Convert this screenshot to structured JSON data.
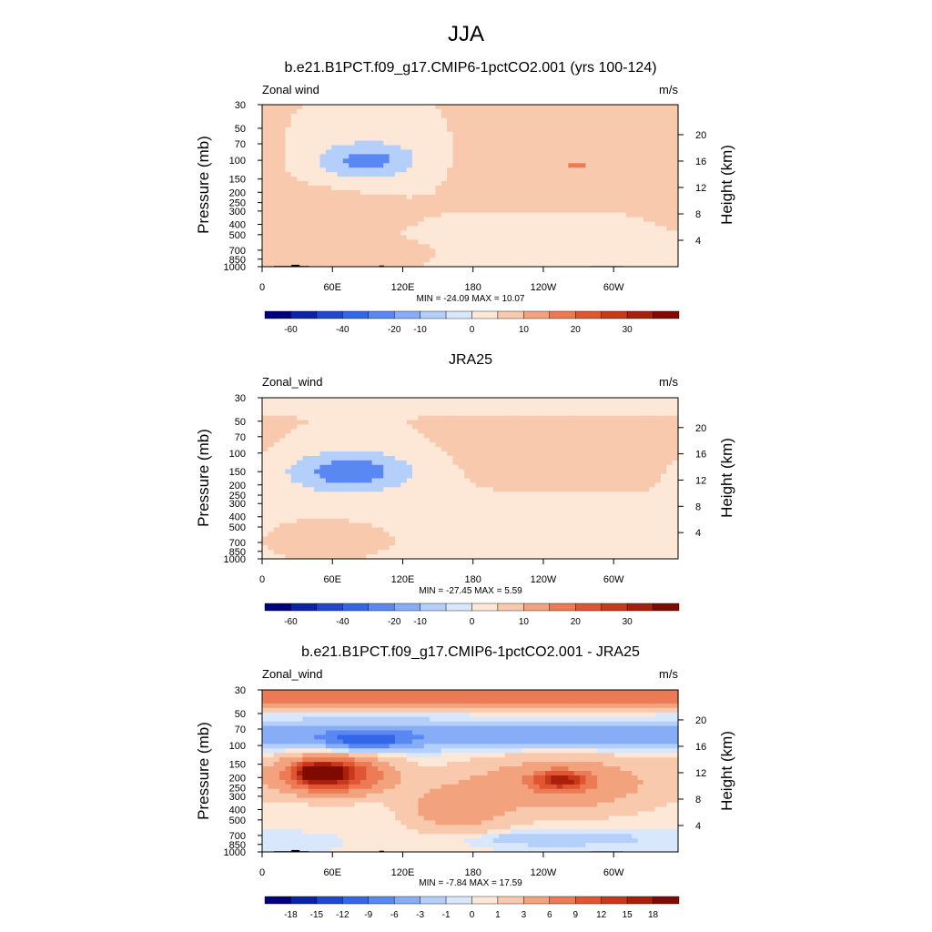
{
  "figure": {
    "title": "JJA"
  },
  "panels": [
    {
      "title": "b.e21.B1PCT.f09_g17.CMIP6-1pctCO2.001 (yrs 100-124)",
      "left_label": "Zonal wind",
      "right_label": "m/s",
      "ylabel": "Pressure (mb)",
      "ylabel_right": "Height (km)",
      "stats": "MIN = -24.09  MAX =  10.07",
      "has_topography": true,
      "colorbar_labels": [
        "-60",
        "-40",
        "-20",
        "-10",
        "0",
        "10",
        "20",
        "30"
      ]
    },
    {
      "title": "JRA25",
      "left_label": "Zonal_wind",
      "right_label": "m/s",
      "ylabel": "Pressure (mb)",
      "ylabel_right": "Height (km)",
      "stats": "MIN = -27.45  MAX =   5.59",
      "has_topography": false,
      "colorbar_labels": [
        "-60",
        "-40",
        "-20",
        "-10",
        "0",
        "10",
        "20",
        "30"
      ]
    },
    {
      "title": "b.e21.B1PCT.f09_g17.CMIP6-1pctCO2.001 - JRA25",
      "left_label": "Zonal_wind",
      "right_label": "m/s",
      "ylabel": "Pressure (mb)",
      "ylabel_right": "Height (km)",
      "stats": "MIN = -7.84  MAX =  17.59",
      "has_topography": true,
      "colorbar_labels": [
        "-18",
        "-15",
        "-12",
        "-9",
        "-6",
        "-3",
        "-1",
        "0",
        "1",
        "3",
        "6",
        "9",
        "12",
        "15",
        "18"
      ]
    }
  ],
  "chart_data": [
    {
      "type": "heatmap",
      "title": "b.e21.B1PCT.f09_g17.CMIP6-1pctCO2.001 (yrs 100-124)",
      "xlabel": "",
      "ylabel": "Pressure (mb)",
      "ylabel_right": "Height (km)",
      "x_ticks": [
        "0",
        "60E",
        "120E",
        "180",
        "120W",
        "60W"
      ],
      "x_tick_values": [
        0,
        60,
        120,
        180,
        240,
        300
      ],
      "xlim": [
        0,
        355
      ],
      "y_ticks": [
        30,
        50,
        70,
        100,
        150,
        200,
        250,
        300,
        400,
        500,
        700,
        850,
        1000
      ],
      "ylim": [
        1000,
        30
      ],
      "y_scale": "log",
      "y_right_ticks": [
        4,
        8,
        12,
        16,
        20
      ],
      "levels": [
        -60,
        -40,
        -20,
        -10,
        0,
        10,
        20,
        30
      ],
      "colors": [
        "#00007f",
        "#0a23a8",
        "#1f47cf",
        "#3466e8",
        "#5a88f2",
        "#88adf7",
        "#b5cffb",
        "#d9e7fc",
        "#fde8d8",
        "#f8c9ad",
        "#f3a27e",
        "#ec7a55",
        "#e05532",
        "#c8381b",
        "#a8200c",
        "#7f0a02"
      ],
      "features": [
        {
          "kind": "ellipse",
          "lon": 90,
          "p": 100,
          "dlon": 45,
          "dp": 0.42,
          "value": -24.09
        },
        {
          "kind": "ellipse",
          "lon": 50,
          "p": 250,
          "dlon": 50,
          "dp": 0.45,
          "value": 3
        },
        {
          "kind": "ellipse",
          "lon": 75,
          "p": 700,
          "dlon": 40,
          "dp": 0.18,
          "value": 5
        },
        {
          "kind": "ellipse",
          "lon": 270,
          "p": 110,
          "dlon": 85,
          "dp": 0.5,
          "value": 10.07
        },
        {
          "kind": "ellipse",
          "lon": 240,
          "p": 550,
          "dlon": 65,
          "dp": 0.35,
          "value": -3
        }
      ],
      "stats": {
        "min": -24.09,
        "max": 10.07
      },
      "colorbar_labels": [
        "-60",
        "-40",
        "-20",
        "-10",
        "0",
        "10",
        "20",
        "30"
      ]
    },
    {
      "type": "heatmap",
      "title": "JRA25",
      "xlabel": "",
      "ylabel": "Pressure (mb)",
      "ylabel_right": "Height (km)",
      "x_ticks": [
        "0",
        "60E",
        "120E",
        "180",
        "120W",
        "60W"
      ],
      "x_tick_values": [
        0,
        60,
        120,
        180,
        240,
        300
      ],
      "xlim": [
        0,
        355
      ],
      "y_ticks": [
        30,
        50,
        70,
        100,
        150,
        200,
        250,
        300,
        400,
        500,
        700,
        850,
        1000
      ],
      "ylim": [
        1000,
        30
      ],
      "y_scale": "log",
      "y_right_ticks": [
        4,
        8,
        12,
        16,
        20
      ],
      "levels": [
        -60,
        -40,
        -20,
        -10,
        0,
        10,
        20,
        30
      ],
      "colors": [
        "#00007f",
        "#0a23a8",
        "#1f47cf",
        "#3466e8",
        "#5a88f2",
        "#88adf7",
        "#b5cffb",
        "#d9e7fc",
        "#fde8d8",
        "#f8c9ad",
        "#f3a27e",
        "#ec7a55",
        "#e05532",
        "#c8381b",
        "#a8200c",
        "#7f0a02"
      ],
      "features": [
        {
          "kind": "band",
          "p": 30,
          "dp": 0.2,
          "value": -3
        },
        {
          "kind": "ellipse",
          "lon": 75,
          "p": 150,
          "dlon": 55,
          "dp": 0.45,
          "value": -27.45
        },
        {
          "kind": "ellipse",
          "lon": 265,
          "p": 110,
          "dlon": 90,
          "dp": 0.5,
          "value": 5.59
        },
        {
          "kind": "ellipse",
          "lon": 230,
          "p": 450,
          "dlon": 100,
          "dp": 0.5,
          "value": -3
        },
        {
          "kind": "ellipse",
          "lon": 60,
          "p": 600,
          "dlon": 45,
          "dp": 0.25,
          "value": 2
        }
      ],
      "stats": {
        "min": -27.45,
        "max": 5.59
      },
      "colorbar_labels": [
        "-60",
        "-40",
        "-20",
        "-10",
        "0",
        "10",
        "20",
        "30"
      ]
    },
    {
      "type": "heatmap",
      "title": "b.e21.B1PCT.f09_g17.CMIP6-1pctCO2.001 - JRA25",
      "xlabel": "",
      "ylabel": "Pressure (mb)",
      "ylabel_right": "Height (km)",
      "x_ticks": [
        "0",
        "60E",
        "120E",
        "180",
        "120W",
        "60W"
      ],
      "x_tick_values": [
        0,
        60,
        120,
        180,
        240,
        300
      ],
      "xlim": [
        0,
        355
      ],
      "y_ticks": [
        30,
        50,
        70,
        100,
        150,
        200,
        250,
        300,
        400,
        500,
        700,
        850,
        1000
      ],
      "ylim": [
        1000,
        30
      ],
      "y_scale": "log",
      "y_right_ticks": [
        4,
        8,
        12,
        16,
        20
      ],
      "levels": [
        -18,
        -15,
        -12,
        -9,
        -6,
        -3,
        -1,
        0,
        1,
        3,
        6,
        9,
        12,
        15,
        18
      ],
      "colors": [
        "#00007f",
        "#0a23a8",
        "#1f47cf",
        "#3466e8",
        "#5a88f2",
        "#88adf7",
        "#b5cffb",
        "#d9e7fc",
        "#fde8d8",
        "#f8c9ad",
        "#f3a27e",
        "#ec7a55",
        "#e05532",
        "#c8381b",
        "#a8200c",
        "#7f0a02"
      ],
      "features": [
        {
          "kind": "band",
          "p": 35,
          "dp": 0.22,
          "value": 8
        },
        {
          "kind": "band",
          "p": 80,
          "dp": 0.28,
          "value": -5
        },
        {
          "kind": "ellipse",
          "lon": 90,
          "p": 90,
          "dlon": 35,
          "dp": 0.2,
          "value": -7.84
        },
        {
          "kind": "ellipse",
          "lon": 60,
          "p": 190,
          "dlon": 45,
          "dp": 0.4,
          "value": 14
        },
        {
          "kind": "ellipse",
          "lon": 50,
          "p": 180,
          "dlon": 18,
          "dp": 0.2,
          "value": 17.59
        },
        {
          "kind": "ellipse",
          "lon": 255,
          "p": 230,
          "dlon": 80,
          "dp": 0.6,
          "value": 6
        },
        {
          "kind": "ellipse",
          "lon": 255,
          "p": 210,
          "dlon": 20,
          "dp": 0.18,
          "value": 12
        },
        {
          "kind": "ellipse",
          "lon": 165,
          "p": 400,
          "dlon": 40,
          "dp": 0.5,
          "value": 5
        },
        {
          "kind": "ellipse",
          "lon": 250,
          "p": 750,
          "dlon": 70,
          "dp": 0.15,
          "value": -3
        }
      ],
      "stats": {
        "min": -7.84,
        "max": 17.59
      },
      "colorbar_labels": [
        "-18",
        "-15",
        "-12",
        "-9",
        "-6",
        "-3",
        "-1",
        "0",
        "1",
        "3",
        "6",
        "9",
        "12",
        "15",
        "18"
      ]
    }
  ]
}
